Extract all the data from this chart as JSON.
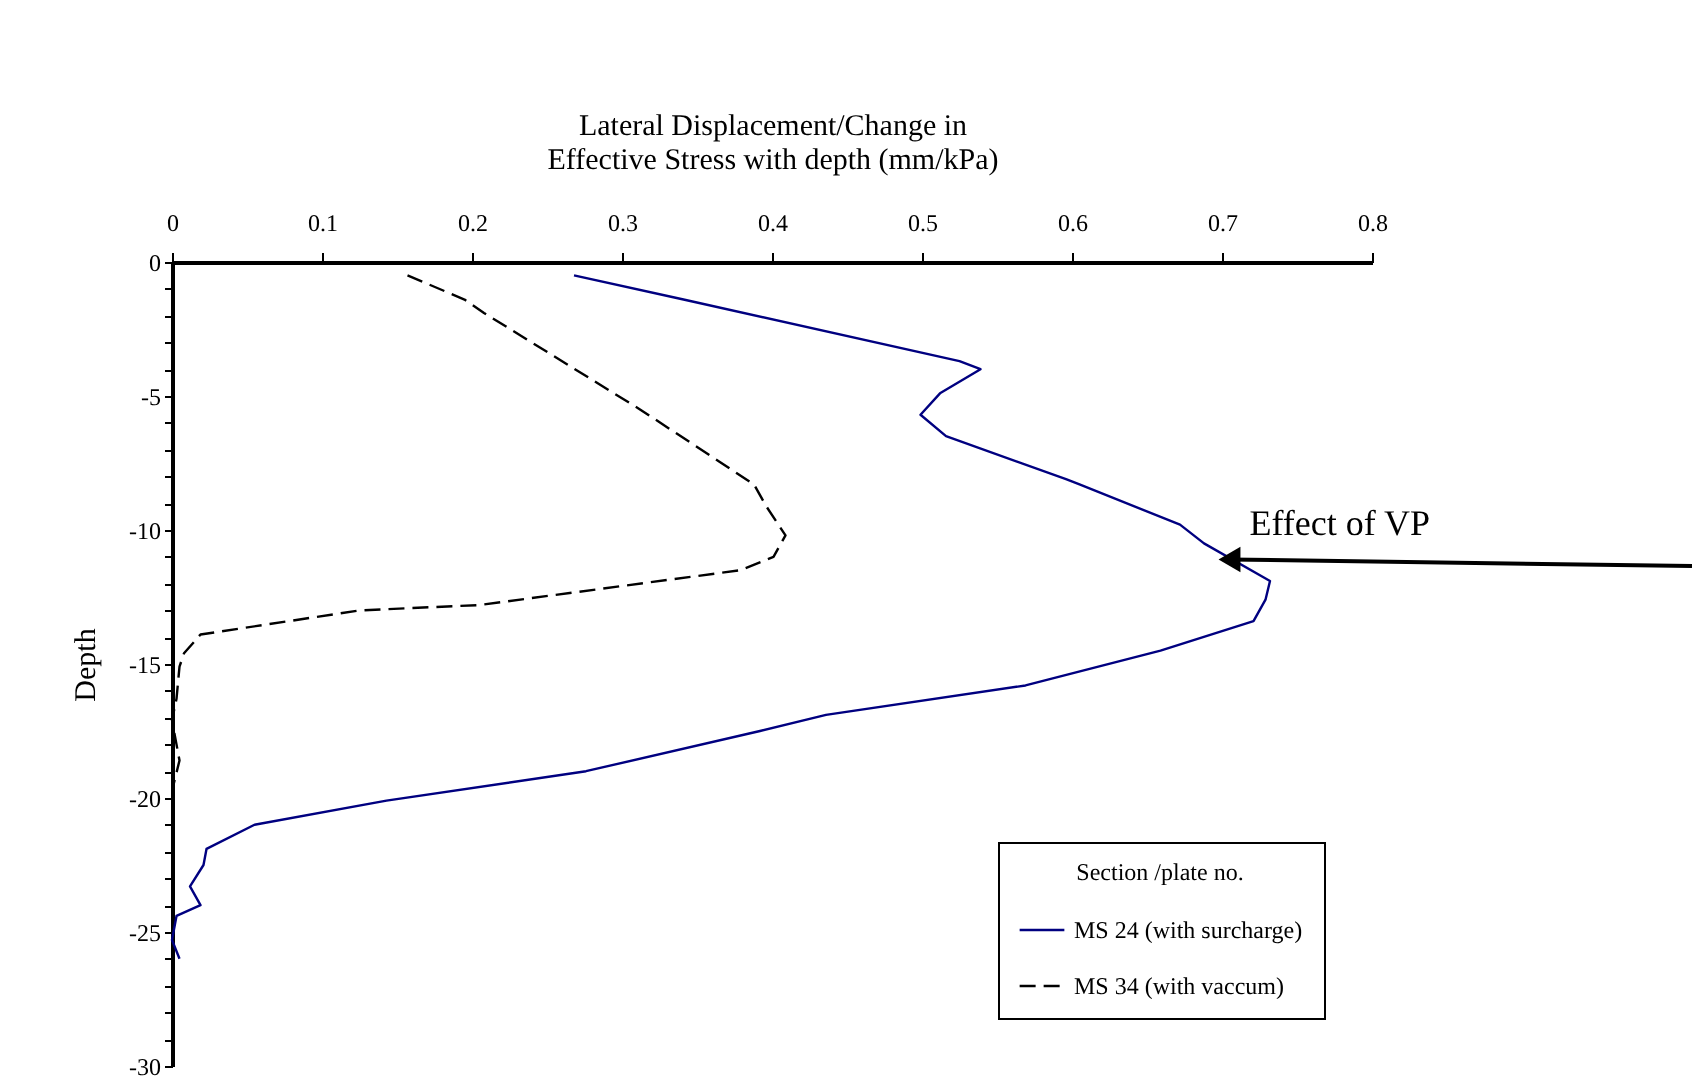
{
  "chart_data": {
    "type": "line",
    "xlabel": "Lateral Displacement/Change in\nEffective Stress with depth (mm/kPa)",
    "ylabel": "Depth",
    "legend_title": "Section /plate no.",
    "legend": "bottom right",
    "grid": false,
    "xlim": [
      0,
      0.8
    ],
    "xticks": [
      0,
      0.1,
      0.2,
      0.3,
      0.4,
      0.5,
      0.6,
      0.7,
      0.8
    ],
    "ylim": [
      -30,
      0
    ],
    "yticks": [
      0,
      {
        "value": -1,
        "label": null
      },
      {
        "value": -2,
        "label": null
      },
      {
        "value": -3,
        "label": null
      },
      {
        "value": -4,
        "label": null
      },
      -5,
      {
        "value": -6,
        "label": null
      },
      {
        "value": -7,
        "label": null
      },
      {
        "value": -8,
        "label": null
      },
      {
        "value": -9,
        "label": null
      },
      -10,
      {
        "value": -11,
        "label": null
      },
      {
        "value": -12,
        "label": null
      },
      {
        "value": -13,
        "label": null
      },
      {
        "value": -14,
        "label": null
      },
      -15,
      {
        "value": -16,
        "label": null
      },
      {
        "value": -17,
        "label": null
      },
      {
        "value": -18,
        "label": null
      },
      {
        "value": -19,
        "label": null
      },
      -20,
      {
        "value": -21,
        "label": null
      },
      {
        "value": -22,
        "label": null
      },
      {
        "value": -23,
        "label": null
      },
      {
        "value": -24,
        "label": null
      },
      -25,
      {
        "value": -26,
        "label": null
      },
      {
        "value": -27,
        "label": null
      },
      {
        "value": -28,
        "label": null
      },
      {
        "value": -29,
        "label": null
      },
      -30
    ],
    "annotations": [
      {
        "text": "Effect of VP",
        "x": 0.705,
        "y": -11.1
      }
    ],
    "series": [
      {
        "name": "MS 24 (with surcharge)",
        "color": "#000080",
        "line_style": "solid",
        "x": [
          0.268,
          0.341,
          0.525,
          0.539,
          0.512,
          0.499,
          0.516,
          0.596,
          0.605,
          0.672,
          0.688,
          0.732,
          0.729,
          0.721,
          0.659,
          0.569,
          0.436,
          0.392,
          0.276,
          0.143,
          0.055,
          0.023,
          0.021,
          0.012,
          0.019,
          0.003,
          0.0,
          0.005
        ],
        "values": [
          -0.5,
          -1.4,
          -3.7,
          -4.0,
          -4.9,
          -5.7,
          -6.5,
          -8.1,
          -8.3,
          -9.8,
          -10.5,
          -11.9,
          -12.6,
          -13.4,
          -14.5,
          -15.8,
          -16.9,
          -17.5,
          -19.0,
          -20.1,
          -21.0,
          -21.9,
          -22.5,
          -23.3,
          -24.0,
          -24.4,
          -25.3,
          -26.0
        ]
      },
      {
        "name": "MS 34 (with vaccum)",
        "color": "#000000",
        "line_style": "dashed",
        "x": [
          0.157,
          0.195,
          0.208,
          0.312,
          0.388,
          0.396,
          0.409,
          0.401,
          0.379,
          0.205,
          0.125,
          0.019,
          0.008,
          0.005,
          0.003,
          0.0,
          0.005,
          0.001
        ],
        "values": [
          -0.5,
          -1.4,
          -1.9,
          -5.5,
          -8.3,
          -9.1,
          -10.2,
          -11.0,
          -11.5,
          -12.8,
          -13.0,
          -13.9,
          -14.6,
          -15.1,
          -16.3,
          -17.1,
          -18.6,
          -19.5
        ]
      }
    ]
  }
}
